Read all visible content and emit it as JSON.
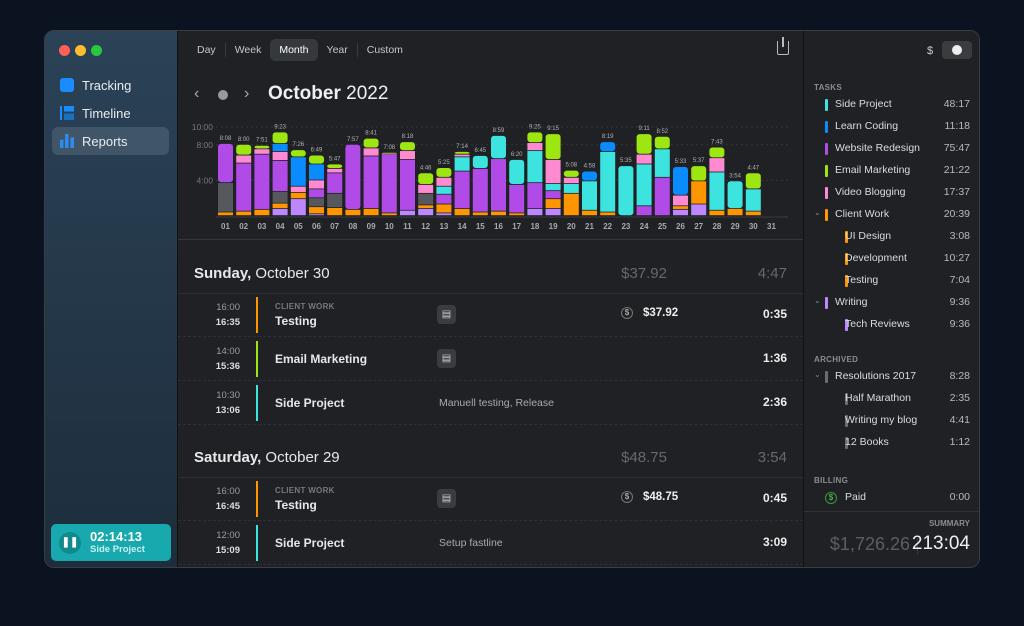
{
  "sidebar": {
    "items": [
      {
        "label": "Tracking",
        "icon": "tracking-icon"
      },
      {
        "label": "Timeline",
        "icon": "timeline-icon"
      },
      {
        "label": "Reports",
        "icon": "reports-icon",
        "active": true
      }
    ],
    "timer": {
      "time": "02:14:13",
      "project": "Side Project",
      "color": "#17a9ad"
    }
  },
  "toolbar": {
    "tabs": [
      "Day",
      "Week",
      "Month",
      "Year",
      "Custom"
    ],
    "active": "Month",
    "share_icon": "share-icon"
  },
  "header": {
    "month": "October",
    "year": "2022"
  },
  "colors": {
    "side": "#3de3de",
    "learn": "#0a8cff",
    "web": "#b04be8",
    "email": "#9ee612",
    "video": "#ff8ad1",
    "client": "#ff9500",
    "writing": "#bd88ff",
    "archived": "#55585c"
  },
  "chart_data": {
    "type": "bar",
    "stacked": true,
    "ylim": [
      0,
      10
    ],
    "yticks": [
      "10:00",
      "8:00",
      "4:00"
    ],
    "ytick_values": [
      10,
      8,
      4
    ],
    "categories": [
      "01",
      "02",
      "03",
      "04",
      "05",
      "06",
      "07",
      "08",
      "09",
      "10",
      "11",
      "12",
      "13",
      "14",
      "15",
      "16",
      "17",
      "18",
      "19",
      "20",
      "21",
      "22",
      "23",
      "24",
      "25",
      "26",
      "27",
      "28",
      "29",
      "30",
      "31"
    ],
    "totals": [
      "8:08",
      "8:00",
      "7:51",
      "9:23",
      "7:26",
      "6:49",
      "5:47",
      "7:57",
      "8:41",
      "7:08",
      "8:18",
      "4:46",
      "5:25",
      "7:14",
      "6:45",
      "8:59",
      "6:20",
      "9:25",
      "9:15",
      "5:08",
      "4:58",
      "8:19",
      "5:35",
      "9:11",
      "8:52",
      "5:33",
      "5:37",
      "7:43",
      "3:54",
      "4:47",
      ""
    ],
    "stacks": [
      [
        [
          "client",
          0.4
        ],
        [
          "archived",
          3.3
        ],
        [
          "web",
          4.4
        ]
      ],
      [
        [
          "client",
          0.5
        ],
        [
          "web",
          5.4
        ],
        [
          "video",
          0.9
        ],
        [
          "email",
          1.2
        ]
      ],
      [
        [
          "client",
          0.7
        ],
        [
          "web",
          6.2
        ],
        [
          "video",
          0.6
        ],
        [
          "email",
          0.4
        ]
      ],
      [
        [
          "writing",
          0.8
        ],
        [
          "client",
          0.6
        ],
        [
          "archived",
          1.3
        ],
        [
          "web",
          3.5
        ],
        [
          "video",
          1.0
        ],
        [
          "learn",
          0.9
        ],
        [
          "email",
          1.3
        ]
      ],
      [
        [
          "writing",
          1.9
        ],
        [
          "client",
          0.7
        ],
        [
          "video",
          0.7
        ],
        [
          "learn",
          3.3
        ],
        [
          "email",
          0.8
        ]
      ],
      [
        [
          "writing",
          0.2
        ],
        [
          "client",
          0.8
        ],
        [
          "archived",
          1.0
        ],
        [
          "web",
          1.0
        ],
        [
          "video",
          1.0
        ],
        [
          "learn",
          1.8
        ],
        [
          "email",
          1.0
        ]
      ],
      [
        [
          "client",
          0.9
        ],
        [
          "archived",
          1.6
        ],
        [
          "web",
          2.3
        ],
        [
          "video",
          0.5
        ],
        [
          "email",
          0.5
        ]
      ],
      [
        [
          "client",
          0.7
        ],
        [
          "web",
          7.3
        ]
      ],
      [
        [
          "client",
          0.8
        ],
        [
          "web",
          5.9
        ],
        [
          "video",
          0.9
        ],
        [
          "email",
          1.1
        ]
      ],
      [
        [
          "client",
          0.3
        ],
        [
          "web",
          6.6
        ],
        [
          "video",
          0.1
        ],
        [
          "email",
          0.1
        ]
      ],
      [
        [
          "writing",
          0.6
        ],
        [
          "web",
          5.7
        ],
        [
          "video",
          1.0
        ],
        [
          "email",
          1.0
        ]
      ],
      [
        [
          "writing",
          0.8
        ],
        [
          "client",
          0.4
        ],
        [
          "archived",
          1.3
        ],
        [
          "video",
          1.0
        ],
        [
          "email",
          1.3
        ]
      ],
      [
        [
          "writing",
          0.3
        ],
        [
          "client",
          1.0
        ],
        [
          "web",
          1.1
        ],
        [
          "side",
          0.9
        ],
        [
          "video",
          1.0
        ],
        [
          "email",
          1.1
        ]
      ],
      [
        [
          "client",
          0.8
        ],
        [
          "web",
          4.2
        ],
        [
          "side",
          1.6
        ],
        [
          "video",
          0.3
        ],
        [
          "email",
          0.3
        ]
      ],
      [
        [
          "client",
          0.4
        ],
        [
          "web",
          4.9
        ],
        [
          "side",
          1.45
        ]
      ],
      [
        [
          "client",
          0.5
        ],
        [
          "web",
          5.9
        ],
        [
          "side",
          2.6
        ]
      ],
      [
        [
          "client",
          0.3
        ],
        [
          "web",
          3.2
        ],
        [
          "side",
          2.8
        ]
      ],
      [
        [
          "writing",
          0.8
        ],
        [
          "web",
          2.9
        ],
        [
          "side",
          3.6
        ],
        [
          "video",
          0.9
        ],
        [
          "email",
          1.2
        ]
      ],
      [
        [
          "writing",
          0.8
        ],
        [
          "client",
          1.1
        ],
        [
          "web",
          0.9
        ],
        [
          "side",
          0.8
        ],
        [
          "video",
          2.7
        ],
        [
          "email",
          2.9
        ]
      ],
      [
        [
          "client",
          2.5
        ],
        [
          "side",
          1.1
        ],
        [
          "video",
          0.7
        ],
        [
          "email",
          0.8
        ]
      ],
      [
        [
          "client",
          0.6
        ],
        [
          "side",
          3.3
        ],
        [
          "learn",
          1.1
        ]
      ],
      [
        [
          "client",
          0.4
        ],
        [
          "side",
          6.8
        ],
        [
          "learn",
          1.1
        ]
      ],
      [
        [
          "side",
          5.6
        ]
      ],
      [
        [
          "web",
          1.1
        ],
        [
          "side",
          4.7
        ],
        [
          "video",
          1.1
        ],
        [
          "email",
          2.3
        ]
      ],
      [
        [
          "web",
          4.3
        ],
        [
          "side",
          3.2
        ],
        [
          "email",
          1.4
        ]
      ],
      [
        [
          "writing",
          0.7
        ],
        [
          "client",
          0.4
        ],
        [
          "video",
          1.2
        ],
        [
          "learn",
          3.2
        ]
      ],
      [
        [
          "writing",
          1.3
        ],
        [
          "client",
          2.6
        ],
        [
          "email",
          1.7
        ]
      ],
      [
        [
          "client",
          0.6
        ],
        [
          "side",
          4.3
        ],
        [
          "video",
          1.6
        ],
        [
          "email",
          1.2
        ]
      ],
      [
        [
          "client",
          0.8
        ],
        [
          "side",
          3.1
        ]
      ],
      [
        [
          "client",
          0.5
        ],
        [
          "side",
          2.5
        ],
        [
          "email",
          1.8
        ]
      ],
      []
    ]
  },
  "days": [
    {
      "weekday": "Sunday,",
      "date": "October 30",
      "money": "$37.92",
      "duration": "4:47",
      "entries": [
        {
          "start": "16:00",
          "end": "16:35",
          "category": "CLIENT WORK",
          "project": "Testing",
          "color": "#ff9500",
          "note_icon": true,
          "note": "",
          "amount": "$37.92",
          "duration": "0:35"
        },
        {
          "start": "14:00",
          "end": "15:36",
          "category": "",
          "project": "Email Marketing",
          "color": "#9ee612",
          "note_icon": true,
          "note": "",
          "amount": "",
          "duration": "1:36"
        },
        {
          "start": "10:30",
          "end": "13:06",
          "category": "",
          "project": "Side Project",
          "color": "#3de3de",
          "note_icon": false,
          "note": "Manuell testing, Release",
          "amount": "",
          "duration": "2:36"
        }
      ]
    },
    {
      "weekday": "Saturday,",
      "date": "October 29",
      "money": "$48.75",
      "duration": "3:54",
      "entries": [
        {
          "start": "16:00",
          "end": "16:45",
          "category": "CLIENT WORK",
          "project": "Testing",
          "color": "#ff9500",
          "note_icon": true,
          "note": "",
          "amount": "$48.75",
          "duration": "0:45"
        },
        {
          "start": "12:00",
          "end": "15:09",
          "category": "",
          "project": "Side Project",
          "color": "#3de3de",
          "note_icon": false,
          "note": "Setup fastline",
          "amount": "",
          "duration": "3:09"
        }
      ]
    }
  ],
  "rightpanel": {
    "currency_label": "$",
    "clock_icon": "clock-icon",
    "tasks_heading": "TASKS",
    "tasks": [
      {
        "name": "Side Project",
        "value": "48:17",
        "color": "#3de3de",
        "level": 0
      },
      {
        "name": "Learn Coding",
        "value": "11:18",
        "color": "#0a8cff",
        "level": 0
      },
      {
        "name": "Website Redesign",
        "value": "75:47",
        "color": "#b04be8",
        "level": 0
      },
      {
        "name": "Email Marketing",
        "value": "21:22",
        "color": "#9ee612",
        "level": 0
      },
      {
        "name": "Video Blogging",
        "value": "17:37",
        "color": "#ff8ad1",
        "level": 0
      },
      {
        "name": "Client Work",
        "value": "20:39",
        "color": "#ff9500",
        "level": 0,
        "expanded": true
      },
      {
        "name": "UI Design",
        "value": "3:08",
        "color": "#ff9500",
        "level": 1
      },
      {
        "name": "Development",
        "value": "10:27",
        "color": "#ff9500",
        "level": 1
      },
      {
        "name": "Testing",
        "value": "7:04",
        "color": "#ff9500",
        "level": 1
      },
      {
        "name": "Writing",
        "value": "9:36",
        "color": "#bd88ff",
        "level": 0,
        "expanded": true
      },
      {
        "name": "Tech Reviews",
        "value": "9:36",
        "color": "#bd88ff",
        "level": 1
      }
    ],
    "archived_heading": "ARCHIVED",
    "archived": [
      {
        "name": "Resolutions 2017",
        "value": "8:28",
        "color": "#6a6c70",
        "level": 0,
        "expanded": true
      },
      {
        "name": "Half Marathon",
        "value": "2:35",
        "color": "#6a6c70",
        "level": 1
      },
      {
        "name": "Writing my blog",
        "value": "4:41",
        "color": "#6a6c70",
        "level": 1
      },
      {
        "name": "12 Books",
        "value": "1:12",
        "color": "#6a6c70",
        "level": 1
      }
    ],
    "billing_heading": "BILLING",
    "billing": [
      {
        "name": "Paid",
        "value": "0:00"
      }
    ],
    "summary_label": "SUMMARY",
    "summary_money": "$1,726.26",
    "summary_time": "213:04"
  }
}
